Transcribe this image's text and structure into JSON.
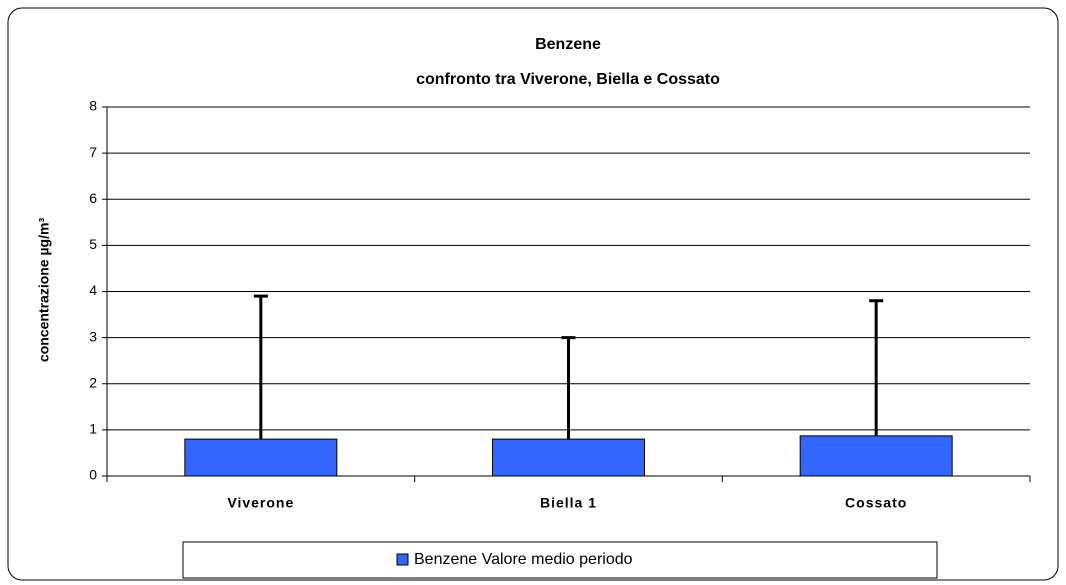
{
  "chart_data": {
    "type": "bar",
    "title": "Benzene",
    "subtitle": "confronto tra Viverone, Biella e Cossato",
    "y_label": "concentrazione µg/m³",
    "categories": [
      "Viverone",
      "Biella 1",
      "Cossato"
    ],
    "series": [
      {
        "name": "Benzene Valore medio periodo",
        "color": "#3366ff",
        "values": [
          0.8,
          0.8,
          0.87
        ],
        "errors": [
          3.1,
          2.2,
          2.93
        ]
      }
    ],
    "ylim": [
      0,
      8
    ],
    "yticks": [
      0,
      1,
      2,
      3,
      4,
      5,
      6,
      7,
      8
    ],
    "grid": true,
    "legend": "bottom"
  }
}
